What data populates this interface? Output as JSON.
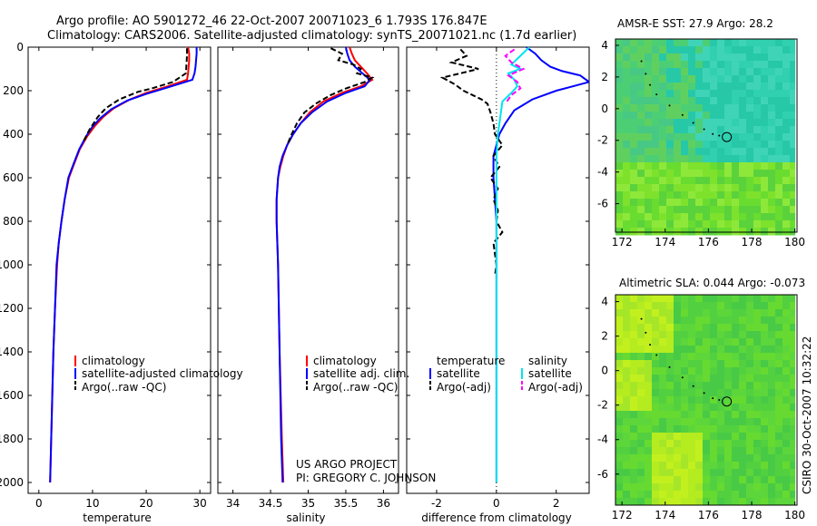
{
  "header": {
    "line1": "Argo profile: AO 5901272_46 22-Oct-2007 20071023_6 1.793S 176.847E",
    "line2": "Climatology: CARS2006. Satellite-adjusted climatology: synTS_20071021.nc (1.7d earlier)"
  },
  "side_label": "CSIRO 30-Oct-2007 10:32:22",
  "credit": {
    "line1": "US ARGO PROJECT",
    "line2": "PI: GREGORY C. JOHNSON"
  },
  "colors": {
    "red": "#ff0000",
    "blue": "#0000ff",
    "black": "#000000",
    "cyan": "#00e5ee",
    "magenta": "#ff00ff"
  },
  "chart_data": [
    {
      "id": "temperature",
      "type": "line",
      "xlabel": "temperature",
      "xlim": [
        -2,
        32
      ],
      "xticks": [
        0,
        10,
        20,
        30
      ],
      "xtick_labels": [
        "0",
        "10",
        "20",
        "30"
      ],
      "ylim": [
        2050,
        0
      ],
      "yticks": [
        0,
        200,
        400,
        600,
        800,
        1000,
        1200,
        1400,
        1600,
        1800,
        2000
      ],
      "ytick_labels": [
        "0",
        "200",
        "400",
        "600",
        "800",
        "1000",
        "1200",
        "1400",
        "1600",
        "1800",
        "2000"
      ],
      "series": [
        {
          "name": "climatology",
          "color": "red",
          "dash": "",
          "x": [
            27.8,
            28.0,
            28.0,
            27.9,
            27.8,
            27.6,
            24,
            20,
            17,
            14,
            12,
            10.5,
            9,
            7.6,
            6.5,
            5.6,
            4.8,
            4.2,
            3.7,
            3.4,
            3.0,
            2.7,
            2.5,
            2.3,
            2.1
          ],
          "y": [
            0,
            30,
            60,
            90,
            120,
            150,
            180,
            210,
            240,
            280,
            320,
            360,
            410,
            470,
            540,
            600,
            700,
            800,
            900,
            1000,
            1200,
            1400,
            1600,
            1800,
            2000
          ]
        },
        {
          "name": "satellite-adjusted climatology",
          "color": "blue",
          "dash": "",
          "x": [
            29.4,
            29.4,
            29.3,
            29.2,
            29.0,
            28.6,
            24,
            20,
            16.5,
            13.5,
            11.5,
            10,
            8.8,
            7.5,
            6.4,
            5.5,
            4.8,
            4.2,
            3.7,
            3.3,
            3.0,
            2.7,
            2.5,
            2.3,
            2.1
          ],
          "y": [
            0,
            30,
            60,
            90,
            120,
            150,
            185,
            215,
            245,
            285,
            325,
            365,
            410,
            470,
            540,
            600,
            700,
            800,
            900,
            1000,
            1200,
            1400,
            1600,
            1800,
            2000
          ]
        },
        {
          "name": "Argo(..raw -QC)",
          "color": "black",
          "dash": "6,3",
          "x": [
            27.6,
            27.6,
            27.5,
            27.4,
            25,
            21,
            18.5,
            15,
            12.5,
            11,
            9.4,
            8.2
          ],
          "y": [
            5,
            40,
            80,
            120,
            160,
            190,
            205,
            240,
            280,
            320,
            380,
            440
          ]
        }
      ],
      "legend": {
        "position": "lower-right",
        "entries": [
          "climatology",
          "satellite-adjusted climatology",
          "Argo(..raw -QC)"
        ]
      }
    },
    {
      "id": "salinity",
      "type": "line",
      "xlabel": "salinity",
      "xlim": [
        33.8,
        36.2
      ],
      "xticks": [
        34,
        34.5,
        35,
        35.5,
        36
      ],
      "xtick_labels": [
        "34",
        "34.5",
        "35",
        "35.5",
        "36"
      ],
      "ylim": [
        2050,
        0
      ],
      "yticks": [
        0,
        200,
        400,
        600,
        800,
        1000,
        1200,
        1400,
        1600,
        1800,
        2000
      ],
      "series": [
        {
          "name": "climatology",
          "color": "red",
          "dash": "",
          "x": [
            35.55,
            35.58,
            35.62,
            35.7,
            35.78,
            35.85,
            35.7,
            35.45,
            35.2,
            35.02,
            34.9,
            34.8,
            34.72,
            34.67,
            34.63,
            34.6,
            34.58,
            34.58,
            34.6,
            34.62,
            34.65,
            34.67
          ],
          "y": [
            0,
            30,
            60,
            90,
            120,
            150,
            180,
            210,
            250,
            300,
            350,
            400,
            450,
            500,
            550,
            600,
            700,
            800,
            1000,
            1400,
            1800,
            2000
          ]
        },
        {
          "name": "satellite adj. clim.",
          "color": "blue",
          "dash": "",
          "x": [
            35.5,
            35.52,
            35.55,
            35.62,
            35.72,
            35.82,
            35.75,
            35.5,
            35.25,
            35.05,
            34.9,
            34.8,
            34.72,
            34.66,
            34.62,
            34.6,
            34.58,
            34.58,
            34.6,
            34.62,
            34.64,
            34.66
          ],
          "y": [
            0,
            30,
            60,
            90,
            120,
            150,
            180,
            210,
            250,
            300,
            350,
            400,
            450,
            500,
            550,
            600,
            700,
            800,
            1000,
            1400,
            1800,
            2000
          ]
        },
        {
          "name": "Argo(..raw -QC)",
          "color": "black",
          "dash": "6,3",
          "x": [
            35.3,
            35.45,
            35.4,
            35.6,
            35.7,
            35.65,
            35.85,
            35.75,
            35.5,
            35.3,
            35.1,
            34.95,
            34.85,
            34.78,
            34.72
          ],
          "y": [
            5,
            30,
            60,
            80,
            100,
            120,
            140,
            160,
            190,
            220,
            260,
            300,
            350,
            400,
            450
          ]
        }
      ],
      "legend": {
        "position": "lower-right",
        "entries": [
          "climatology",
          "satellite adj. clim.",
          "Argo(..raw -QC)"
        ]
      }
    },
    {
      "id": "difference",
      "type": "line",
      "xlabel": "difference from climatology",
      "xlim": [
        -3,
        3.1
      ],
      "xticks": [
        -2,
        0,
        2
      ],
      "xtick_labels": [
        "-2",
        "0",
        "2"
      ],
      "ylim": [
        2050,
        0
      ],
      "yticks": [
        0,
        200,
        400,
        600,
        800,
        1000,
        1200,
        1400,
        1600,
        1800,
        2000
      ],
      "series": [
        {
          "name": "temperature satellite",
          "color": "blue",
          "dash": "",
          "x": [
            1.0,
            1.3,
            1.5,
            1.8,
            2.2,
            2.8,
            3.1,
            2.0,
            1.2,
            0.6,
            0.3,
            0.1,
            0.0,
            -0.1,
            -0.1,
            0,
            0,
            0,
            0,
            0,
            0
          ],
          "y": [
            0,
            30,
            60,
            90,
            110,
            130,
            160,
            200,
            240,
            290,
            350,
            400,
            450,
            500,
            600,
            800,
            1000,
            1200,
            1400,
            1700,
            2000
          ]
        },
        {
          "name": "temperature Argo(-adj)",
          "color": "black",
          "dash": "6,3",
          "x": [
            -1.2,
            -1.0,
            -1.5,
            -0.6,
            -1.8,
            -1.4,
            -1.1,
            -0.8,
            -0.5,
            -0.3,
            -0.2,
            -0.1,
            -0.05,
            0.2,
            -0.1,
            0.1,
            -0.2,
            0.05,
            -0.1,
            0.05,
            0,
            0.2,
            -0.1,
            -0.05,
            0,
            -0.05
          ],
          "y": [
            10,
            40,
            70,
            100,
            140,
            170,
            200,
            220,
            240,
            260,
            300,
            350,
            400,
            450,
            500,
            550,
            600,
            650,
            700,
            750,
            800,
            850,
            900,
            950,
            1000,
            1050
          ]
        },
        {
          "name": "salinity satellite",
          "color": "cyan",
          "dash": "",
          "x": [
            1.1,
            0.8,
            0.5,
            0.8,
            0.4,
            0.6,
            0.7,
            0.5,
            0.2,
            0.15,
            0.05,
            0,
            0,
            0,
            0
          ],
          "y": [
            0,
            40,
            80,
            100,
            120,
            150,
            180,
            210,
            250,
            300,
            400,
            500,
            800,
            1200,
            2000
          ]
        },
        {
          "name": "salinity Argo(-adj)",
          "color": "magenta",
          "dash": "6,3",
          "x": [
            0.6,
            0.3,
            0.5,
            0.9,
            0.4,
            0.7,
            0.8,
            0.5,
            0.3
          ],
          "y": [
            10,
            40,
            70,
            100,
            130,
            160,
            190,
            220,
            260
          ]
        }
      ],
      "legend": {
        "position": "lower-right",
        "entries": [
          "temperature",
          "satellite",
          "Argo(-adj)",
          "salinity",
          "satellite",
          "Argo(-adj)"
        ]
      }
    },
    {
      "id": "sst_map",
      "type": "heatmap",
      "title": "AMSR-E SST: 27.9 Argo: 28.2",
      "xlim": [
        171.7,
        180.1
      ],
      "xticks": [
        172,
        174,
        176,
        178,
        180
      ],
      "xtick_labels": [
        "172",
        "174",
        "176",
        "178",
        "180"
      ],
      "ylim": [
        -7.8,
        4.4
      ],
      "yticks": [
        -6,
        -4,
        -2,
        0,
        2,
        4
      ],
      "ytick_labels": [
        "-6",
        "-4",
        "-2",
        "0",
        "2",
        "4"
      ],
      "float_position": [
        176.85,
        -1.79
      ]
    },
    {
      "id": "sla_map",
      "type": "heatmap",
      "title": "Altimetric SLA: 0.044 Argo: -0.073",
      "xlim": [
        171.7,
        180.1
      ],
      "xticks": [
        172,
        174,
        176,
        178,
        180
      ],
      "xtick_labels": [
        "172",
        "174",
        "176",
        "178",
        "180"
      ],
      "ylim": [
        -7.8,
        4.4
      ],
      "yticks": [
        -6,
        -4,
        -2,
        0,
        2,
        4
      ],
      "ytick_labels": [
        "-6",
        "-4",
        "-2",
        "0",
        "2",
        "4"
      ],
      "float_position": [
        176.85,
        -1.79
      ]
    }
  ]
}
